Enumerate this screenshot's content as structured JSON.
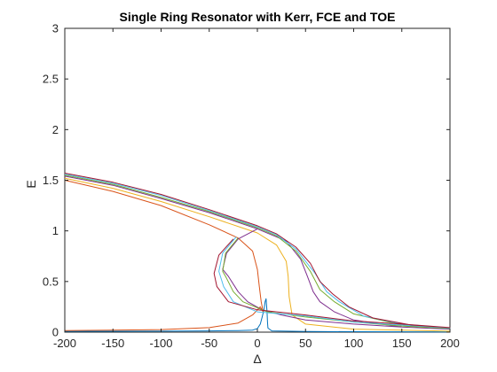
{
  "chart_data": {
    "type": "line",
    "title": "Single Ring Resonator with Kerr, FCE and TOE",
    "xlabel": "Δ",
    "ylabel": "E",
    "xlim": [
      -200,
      200
    ],
    "ylim": [
      0,
      3
    ],
    "xticks": [
      -200,
      -150,
      -100,
      -50,
      0,
      50,
      100,
      150,
      200
    ],
    "yticks": [
      0,
      0.5,
      1,
      1.5,
      2,
      2.5,
      3
    ],
    "xtick_labels": [
      "-200",
      "-150",
      "-100",
      "-50",
      "0",
      "50",
      "100",
      "150",
      "200"
    ],
    "ytick_labels": [
      "0",
      "0.5",
      "1",
      "1.5",
      "2",
      "2.5",
      "3"
    ],
    "grid": false,
    "series": [
      {
        "color": "#0072BD",
        "points": [
          [
            -200,
            0.008
          ],
          [
            -100,
            0.01
          ],
          [
            -50,
            0.012
          ],
          [
            -20,
            0.016
          ],
          [
            -5,
            0.02
          ],
          [
            0,
            0.035
          ],
          [
            3,
            0.08
          ],
          [
            5,
            0.15
          ],
          [
            7,
            0.23
          ],
          [
            8,
            0.3
          ],
          [
            9,
            0.33
          ],
          [
            10,
            0.2
          ],
          [
            10.5,
            0.1
          ],
          [
            11,
            0.04
          ],
          [
            15,
            0.012
          ],
          [
            50,
            0.006
          ],
          [
            100,
            0.004
          ],
          [
            200,
            0.002
          ]
        ]
      },
      {
        "color": "#D95319",
        "points": [
          [
            -200,
            1.5
          ],
          [
            -150,
            1.39
          ],
          [
            -100,
            1.25
          ],
          [
            -50,
            1.06
          ],
          [
            -20,
            0.93
          ],
          [
            -5,
            0.8
          ],
          [
            0,
            0.62
          ],
          [
            2,
            0.45
          ],
          [
            4,
            0.3
          ],
          [
            6,
            0.2
          ],
          [
            3,
            0.25
          ],
          [
            -5,
            0.17
          ],
          [
            -20,
            0.09
          ],
          [
            -50,
            0.045
          ],
          [
            -100,
            0.025
          ],
          [
            -200,
            0.015
          ]
        ]
      },
      {
        "color": "#EDB120",
        "points": [
          [
            -200,
            1.52
          ],
          [
            -150,
            1.42
          ],
          [
            -100,
            1.29
          ],
          [
            -50,
            1.14
          ],
          [
            0,
            0.98
          ],
          [
            20,
            0.86
          ],
          [
            30,
            0.7
          ],
          [
            32,
            0.55
          ],
          [
            33,
            0.35
          ],
          [
            36,
            0.17
          ],
          [
            50,
            0.08
          ],
          [
            100,
            0.03
          ],
          [
            200,
            0.01
          ]
        ]
      },
      {
        "color": "#7E2F8E",
        "points": [
          [
            -200,
            1.54
          ],
          [
            -150,
            1.45
          ],
          [
            -100,
            1.32
          ],
          [
            -50,
            1.18
          ],
          [
            0,
            1.02
          ],
          [
            30,
            0.9
          ],
          [
            45,
            0.72
          ],
          [
            52,
            0.55
          ],
          [
            58,
            0.4
          ],
          [
            65,
            0.3
          ],
          [
            80,
            0.2
          ],
          [
            100,
            0.12
          ],
          [
            150,
            0.05
          ],
          [
            200,
            0.03
          ],
          [
            150,
            0.05
          ],
          [
            100,
            0.08
          ],
          [
            50,
            0.12
          ],
          [
            25,
            0.17
          ],
          [
            5,
            0.22
          ],
          [
            -10,
            0.3
          ],
          [
            -20,
            0.4
          ],
          [
            -30,
            0.55
          ],
          [
            -36,
            0.62
          ],
          [
            -32,
            0.78
          ],
          [
            -20,
            0.92
          ],
          [
            0,
            1.02
          ]
        ]
      },
      {
        "color": "#77AC30",
        "points": [
          [
            -200,
            1.55
          ],
          [
            -150,
            1.46
          ],
          [
            -100,
            1.33
          ],
          [
            -50,
            1.19
          ],
          [
            0,
            1.03
          ],
          [
            20,
            0.95
          ],
          [
            40,
            0.8
          ],
          [
            55,
            0.6
          ],
          [
            65,
            0.42
          ],
          [
            80,
            0.3
          ],
          [
            100,
            0.18
          ],
          [
            150,
            0.07
          ],
          [
            200,
            0.035
          ],
          [
            150,
            0.06
          ],
          [
            100,
            0.1
          ],
          [
            50,
            0.15
          ],
          [
            10,
            0.2
          ],
          [
            -15,
            0.3
          ],
          [
            -25,
            0.4
          ],
          [
            -33,
            0.55
          ],
          [
            -36,
            0.6
          ],
          [
            -33,
            0.78
          ],
          [
            -20,
            0.93
          ]
        ]
      },
      {
        "color": "#4DBEEE",
        "points": [
          [
            -200,
            1.56
          ],
          [
            -150,
            1.47
          ],
          [
            -100,
            1.35
          ],
          [
            -50,
            1.2
          ],
          [
            0,
            1.04
          ],
          [
            20,
            0.96
          ],
          [
            40,
            0.82
          ],
          [
            60,
            0.58
          ],
          [
            72,
            0.4
          ],
          [
            85,
            0.3
          ],
          [
            110,
            0.16
          ],
          [
            150,
            0.08
          ],
          [
            200,
            0.04
          ],
          [
            150,
            0.07
          ],
          [
            100,
            0.1
          ],
          [
            50,
            0.16
          ],
          [
            0,
            0.2
          ],
          [
            -25,
            0.3
          ],
          [
            -35,
            0.45
          ],
          [
            -40,
            0.6
          ],
          [
            -36,
            0.78
          ],
          [
            -22,
            0.94
          ]
        ]
      },
      {
        "color": "#A2142F",
        "points": [
          [
            -200,
            1.57
          ],
          [
            -150,
            1.48
          ],
          [
            -100,
            1.36
          ],
          [
            -50,
            1.21
          ],
          [
            0,
            1.05
          ],
          [
            20,
            0.97
          ],
          [
            40,
            0.84
          ],
          [
            55,
            0.68
          ],
          [
            65,
            0.5
          ],
          [
            78,
            0.38
          ],
          [
            95,
            0.25
          ],
          [
            120,
            0.14
          ],
          [
            160,
            0.07
          ],
          [
            200,
            0.045
          ],
          [
            150,
            0.08
          ],
          [
            100,
            0.11
          ],
          [
            50,
            0.17
          ],
          [
            0,
            0.22
          ],
          [
            -30,
            0.3
          ],
          [
            -42,
            0.45
          ],
          [
            -45,
            0.58
          ],
          [
            -40,
            0.76
          ],
          [
            -25,
            0.92
          ]
        ]
      }
    ]
  }
}
